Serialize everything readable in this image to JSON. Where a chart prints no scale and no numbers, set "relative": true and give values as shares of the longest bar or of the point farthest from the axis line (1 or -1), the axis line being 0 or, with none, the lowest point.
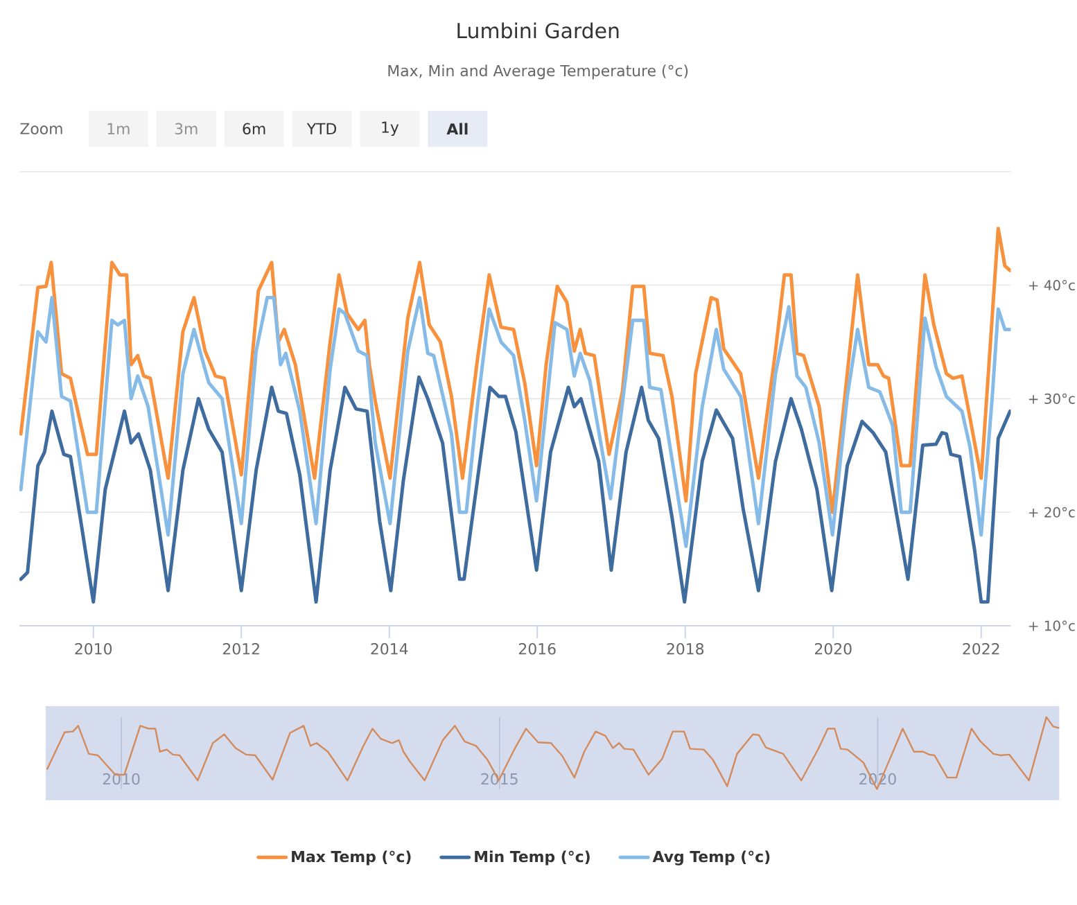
{
  "chart_data": [
    {
      "type": "line",
      "title": "Lumbini Garden",
      "subtitle": "Max, Min and Average Temperature (°c)",
      "annotations": [
        "Zoom",
        "1m",
        "3m",
        "6m",
        "YTD",
        "1y",
        "All"
      ],
      "xlim": [
        2009.0,
        2022.4
      ],
      "ylim": [
        10,
        50
      ],
      "xticks": [
        2010,
        2012,
        2014,
        2016,
        2018,
        2020,
        2022
      ],
      "yticks": [
        {
          "value": 10,
          "label": "+ 10°c"
        },
        {
          "value": 20,
          "label": "+ 20°c"
        },
        {
          "value": 30,
          "label": "+ 30°c"
        },
        {
          "value": 40,
          "label": "+ 40°c"
        },
        {
          "value": 50,
          "label": null
        }
      ],
      "grid": "y",
      "legend": "bottom",
      "marker": "none",
      "line_style": "solid",
      "series": [
        {
          "name": "Max Temp (°c)",
          "color": "#f7913d",
          "x": [
            2009.02,
            2009.25,
            2009.36,
            2009.43,
            2009.57,
            2009.69,
            2009.92,
            2010.04,
            2010.25,
            2010.36,
            2010.45,
            2010.51,
            2010.6,
            2010.68,
            2010.77,
            2011.01,
            2011.21,
            2011.36,
            2011.51,
            2011.65,
            2011.77,
            2012.0,
            2012.23,
            2012.41,
            2012.5,
            2012.58,
            2012.73,
            2012.99,
            2013.2,
            2013.32,
            2013.43,
            2013.58,
            2013.67,
            2013.73,
            2013.81,
            2014.01,
            2014.25,
            2014.41,
            2014.54,
            2014.69,
            2014.84,
            2014.99,
            2015.19,
            2015.35,
            2015.51,
            2015.68,
            2015.83,
            2015.99,
            2016.12,
            2016.27,
            2016.4,
            2016.5,
            2016.58,
            2016.65,
            2016.77,
            2016.97,
            2017.15,
            2017.29,
            2017.44,
            2017.52,
            2017.7,
            2017.82,
            2018.01,
            2018.14,
            2018.35,
            2018.43,
            2018.52,
            2018.75,
            2018.99,
            2019.22,
            2019.34,
            2019.43,
            2019.51,
            2019.6,
            2019.81,
            2019.99,
            2020.19,
            2020.33,
            2020.48,
            2020.6,
            2020.68,
            2020.75,
            2020.92,
            2021.04,
            2021.24,
            2021.36,
            2021.53,
            2021.62,
            2021.74,
            2021.82,
            2022.0,
            2022.13,
            2022.23,
            2022.32,
            2022.39
          ],
          "values": [
            26.9,
            39.8,
            39.9,
            42.0,
            32.2,
            31.8,
            25.1,
            25.1,
            42.0,
            40.9,
            40.9,
            33.0,
            33.8,
            32.0,
            31.8,
            23.0,
            35.9,
            38.9,
            34.2,
            32.0,
            31.8,
            23.3,
            39.5,
            42.0,
            35.0,
            36.1,
            33.0,
            23.0,
            35.0,
            40.9,
            37.5,
            36.1,
            36.9,
            33.0,
            29.8,
            23.0,
            37.1,
            42.0,
            36.5,
            35.0,
            30.2,
            23.0,
            33.4,
            40.9,
            36.3,
            36.1,
            31.4,
            24.1,
            33.0,
            39.9,
            38.5,
            34.2,
            36.1,
            34.0,
            33.8,
            25.1,
            30.6,
            39.9,
            39.9,
            34.0,
            33.8,
            30.2,
            21.0,
            32.2,
            38.9,
            38.7,
            34.4,
            32.2,
            23.0,
            34.2,
            40.9,
            40.9,
            34.0,
            33.8,
            29.3,
            20.0,
            32.2,
            40.9,
            33.0,
            33.0,
            32.0,
            31.8,
            24.1,
            24.1,
            40.9,
            36.5,
            32.2,
            31.8,
            32.0,
            29.3,
            23.0,
            35.4,
            45.0,
            41.7,
            41.3
          ]
        },
        {
          "name": "Min Temp (°c)",
          "color": "#3f6c9f",
          "x": [
            2009.02,
            2009.11,
            2009.25,
            2009.34,
            2009.44,
            2009.6,
            2009.69,
            2009.84,
            2010.0,
            2010.16,
            2010.42,
            2010.51,
            2010.61,
            2010.77,
            2011.01,
            2011.21,
            2011.42,
            2011.56,
            2011.74,
            2012.0,
            2012.2,
            2012.41,
            2012.5,
            2012.61,
            2012.79,
            2013.01,
            2013.2,
            2013.4,
            2013.55,
            2013.7,
            2013.87,
            2014.02,
            2014.19,
            2014.4,
            2014.52,
            2014.72,
            2014.95,
            2015.01,
            2015.19,
            2015.36,
            2015.48,
            2015.57,
            2015.71,
            2015.99,
            2016.18,
            2016.42,
            2016.5,
            2016.59,
            2016.83,
            2017.0,
            2017.2,
            2017.41,
            2017.5,
            2017.64,
            2017.82,
            2017.99,
            2018.23,
            2018.42,
            2018.64,
            2018.78,
            2018.99,
            2019.22,
            2019.43,
            2019.57,
            2019.78,
            2019.98,
            2020.19,
            2020.39,
            2020.54,
            2020.71,
            2021.01,
            2021.21,
            2021.39,
            2021.47,
            2021.53,
            2021.59,
            2021.71,
            2021.91,
            2022.0,
            2022.09,
            2022.23,
            2022.39
          ],
          "values": [
            14.1,
            14.7,
            24.1,
            25.3,
            28.9,
            25.1,
            24.9,
            18.8,
            12.1,
            22.0,
            28.9,
            26.1,
            26.9,
            23.7,
            13.1,
            23.7,
            30.0,
            27.3,
            25.3,
            13.1,
            23.7,
            31.0,
            28.9,
            28.7,
            23.3,
            12.1,
            23.7,
            31.0,
            29.1,
            28.9,
            19.2,
            13.1,
            22.8,
            31.9,
            30.0,
            26.1,
            14.1,
            14.1,
            22.8,
            31.0,
            30.2,
            30.2,
            27.1,
            14.9,
            25.3,
            31.0,
            29.3,
            30.0,
            24.5,
            14.9,
            25.3,
            31.0,
            28.1,
            26.5,
            19.6,
            12.1,
            24.5,
            29.0,
            26.5,
            20.4,
            13.1,
            24.5,
            30.0,
            27.3,
            22.0,
            13.1,
            24.1,
            28.0,
            27.0,
            25.3,
            14.1,
            25.9,
            26.0,
            27.0,
            26.9,
            25.1,
            24.9,
            16.7,
            12.1,
            12.1,
            26.5,
            28.9
          ]
        },
        {
          "name": "Avg Temp (°c)",
          "color": "#86bbe8",
          "x": [
            2009.02,
            2009.25,
            2009.36,
            2009.44,
            2009.57,
            2009.69,
            2009.92,
            2010.04,
            2010.25,
            2010.33,
            2010.42,
            2010.51,
            2010.6,
            2010.74,
            2011.01,
            2011.21,
            2011.36,
            2011.56,
            2011.74,
            2012.0,
            2012.2,
            2012.35,
            2012.44,
            2012.53,
            2012.6,
            2012.79,
            2013.01,
            2013.2,
            2013.32,
            2013.4,
            2013.58,
            2013.7,
            2013.81,
            2014.01,
            2014.25,
            2014.41,
            2014.52,
            2014.6,
            2014.84,
            2014.95,
            2015.04,
            2015.19,
            2015.35,
            2015.51,
            2015.68,
            2015.83,
            2015.99,
            2016.24,
            2016.4,
            2016.5,
            2016.58,
            2016.71,
            2016.99,
            2017.29,
            2017.44,
            2017.52,
            2017.67,
            2018.01,
            2018.23,
            2018.42,
            2018.52,
            2018.75,
            2018.99,
            2019.22,
            2019.4,
            2019.51,
            2019.63,
            2019.81,
            2019.99,
            2020.19,
            2020.33,
            2020.48,
            2020.63,
            2020.8,
            2020.92,
            2021.04,
            2021.24,
            2021.39,
            2021.53,
            2021.74,
            2021.85,
            2022.0,
            2022.15,
            2022.23,
            2022.32,
            2022.39
          ],
          "values": [
            22.0,
            35.9,
            35.0,
            38.9,
            30.2,
            29.8,
            20.0,
            20.0,
            36.9,
            36.5,
            36.9,
            30.0,
            32.0,
            29.3,
            18.0,
            32.2,
            36.1,
            31.4,
            30.0,
            19.0,
            34.2,
            38.9,
            38.9,
            33.0,
            34.0,
            28.9,
            19.0,
            32.6,
            37.9,
            37.5,
            34.2,
            33.8,
            26.1,
            19.0,
            34.2,
            38.9,
            34.0,
            33.8,
            26.9,
            20.0,
            20.0,
            29.3,
            37.9,
            35.0,
            33.8,
            28.1,
            21.0,
            36.7,
            36.1,
            32.0,
            34.0,
            31.6,
            21.2,
            36.9,
            36.9,
            31.0,
            30.8,
            17.0,
            29.3,
            36.1,
            32.6,
            30.2,
            19.0,
            32.2,
            38.1,
            32.0,
            31.0,
            26.1,
            18.0,
            30.2,
            36.1,
            31.0,
            30.6,
            27.7,
            20.0,
            20.0,
            37.1,
            32.8,
            30.2,
            28.9,
            25.7,
            18.0,
            30.2,
            37.9,
            36.1,
            36.1
          ]
        }
      ]
    },
    {
      "type": "line",
      "relative": true,
      "xlim": [
        2009.0,
        2022.4
      ],
      "xticks": [
        2010,
        2015,
        2020
      ],
      "grid": "x",
      "color": "#d38b5d",
      "x": [
        2009.02,
        2009.25,
        2009.36,
        2009.43,
        2009.57,
        2009.69,
        2009.92,
        2010.04,
        2010.25,
        2010.36,
        2010.45,
        2010.51,
        2010.6,
        2010.68,
        2010.77,
        2011.01,
        2011.21,
        2011.36,
        2011.51,
        2011.65,
        2011.77,
        2012.0,
        2012.23,
        2012.41,
        2012.5,
        2012.58,
        2012.73,
        2012.99,
        2013.2,
        2013.32,
        2013.43,
        2013.58,
        2013.67,
        2013.73,
        2013.81,
        2014.01,
        2014.25,
        2014.41,
        2014.54,
        2014.69,
        2014.84,
        2014.99,
        2015.19,
        2015.35,
        2015.51,
        2015.68,
        2015.83,
        2015.99,
        2016.12,
        2016.27,
        2016.4,
        2016.5,
        2016.58,
        2016.65,
        2016.77,
        2016.97,
        2017.15,
        2017.29,
        2017.44,
        2017.52,
        2017.7,
        2017.82,
        2018.01,
        2018.14,
        2018.35,
        2018.43,
        2018.52,
        2018.75,
        2018.99,
        2019.22,
        2019.34,
        2019.43,
        2019.51,
        2019.6,
        2019.81,
        2019.99,
        2020.19,
        2020.33,
        2020.48,
        2020.6,
        2020.68,
        2020.75,
        2020.92,
        2021.04,
        2021.24,
        2021.36,
        2021.53,
        2021.62,
        2021.74,
        2021.82,
        2022.0,
        2022.13,
        2022.23,
        2022.32,
        2022.39
      ],
      "values": [
        0.28,
        0.79,
        0.8,
        0.88,
        0.49,
        0.47,
        0.2,
        0.2,
        0.88,
        0.84,
        0.84,
        0.52,
        0.55,
        0.48,
        0.47,
        0.12,
        0.64,
        0.76,
        0.57,
        0.48,
        0.47,
        0.13,
        0.78,
        0.88,
        0.6,
        0.64,
        0.52,
        0.12,
        0.6,
        0.84,
        0.7,
        0.64,
        0.68,
        0.52,
        0.39,
        0.12,
        0.68,
        0.88,
        0.66,
        0.6,
        0.41,
        0.12,
        0.54,
        0.84,
        0.65,
        0.64,
        0.46,
        0.16,
        0.52,
        0.8,
        0.74,
        0.57,
        0.64,
        0.56,
        0.55,
        0.2,
        0.42,
        0.8,
        0.8,
        0.56,
        0.55,
        0.41,
        0.04,
        0.49,
        0.76,
        0.75,
        0.58,
        0.49,
        0.12,
        0.57,
        0.84,
        0.84,
        0.56,
        0.55,
        0.37,
        0.0,
        0.49,
        0.84,
        0.52,
        0.52,
        0.48,
        0.47,
        0.16,
        0.16,
        0.84,
        0.66,
        0.49,
        0.47,
        0.48,
        0.37,
        0.12,
        0.62,
        1.0,
        0.87,
        0.85
      ]
    }
  ]
}
